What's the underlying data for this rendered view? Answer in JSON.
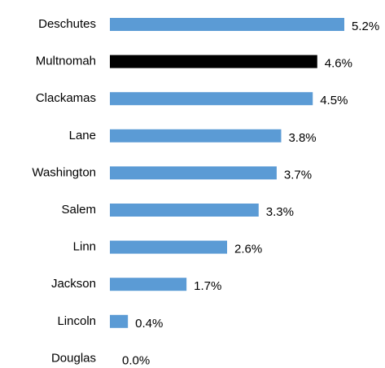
{
  "chart_data": {
    "type": "bar",
    "orientation": "horizontal",
    "categories": [
      "Deschutes",
      "Multnomah",
      "Clackamas",
      "Lane",
      "Washington",
      "Salem",
      "Linn",
      "Jackson",
      "Lincoln",
      "Douglas"
    ],
    "values": [
      5.2,
      4.6,
      4.5,
      3.8,
      3.7,
      3.3,
      2.6,
      1.7,
      0.4,
      0.0
    ],
    "value_labels": [
      "5.2%",
      "4.6%",
      "4.5%",
      "3.8%",
      "3.7%",
      "3.3%",
      "2.6%",
      "1.7%",
      "0.4%",
      "0.0%"
    ],
    "colors": [
      "#5b9bd5",
      "#000000",
      "#5b9bd5",
      "#5b9bd5",
      "#5b9bd5",
      "#5b9bd5",
      "#5b9bd5",
      "#5b9bd5",
      "#5b9bd5",
      "#5b9bd5"
    ]
  }
}
